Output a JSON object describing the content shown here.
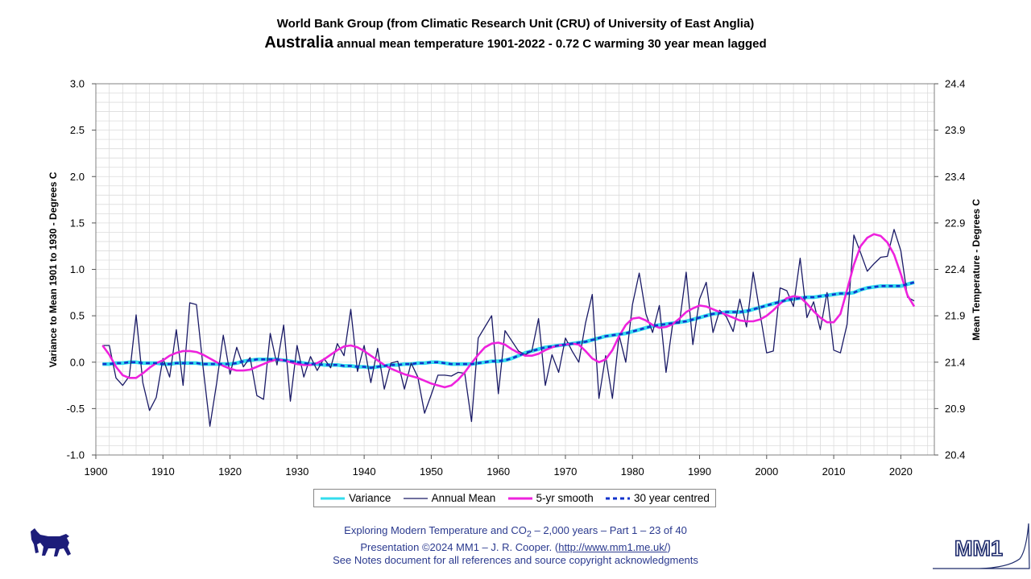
{
  "header": {
    "line1": "World Bank Group (from Climatic Research Unit (CRU) of University of East Anglia)",
    "country": "Australia",
    "line2_rest": " annual mean temperature 1901-2022 - 0.72 C warming 30 year mean lagged"
  },
  "footer": {
    "line1_pre": "Exploring Modern Temperature and CO",
    "line1_sub": "2",
    "line1_post": " – 2,000 years – Part 1 – 23 of 40",
    "line2_pre": "Presentation ©2024 MM1 – J. R. Cooper. (",
    "line2_link": "http://www.mm1.me.uk/",
    "line2_post": ")",
    "line3": "See Notes document for all references and source copyright acknowledgments"
  },
  "logo": {
    "text": "MM1"
  },
  "chart_data": {
    "type": "line",
    "title": "Australia annual mean temperature 1901-2022 - 0.72 C warming 30 year mean lagged",
    "xlabel": "",
    "ylabel": "Variance to Mean 1901 to 1930 - Degrees C",
    "y2label": "Mean Temperature - Degrees C",
    "xlim": [
      1900,
      2025
    ],
    "ylim": [
      -1.0,
      3.0
    ],
    "y2lim": [
      20.4,
      24.4
    ],
    "x_ticks": [
      1900,
      1910,
      1920,
      1930,
      1940,
      1950,
      1960,
      1970,
      1980,
      1990,
      2000,
      2010,
      2020
    ],
    "y_ticks": [
      "-1.0",
      "-0.5",
      "0.0",
      "0.5",
      "1.0",
      "1.5",
      "2.0",
      "2.5",
      "3.0"
    ],
    "y2_ticks": [
      "20.4",
      "20.9",
      "21.4",
      "21.9",
      "22.4",
      "22.9",
      "23.4",
      "23.9",
      "24.4"
    ],
    "grid": true,
    "legend_position": "bottom",
    "legend": [
      "Variance",
      "Annual Mean",
      "5-yr smooth",
      "30 year centred"
    ],
    "colors": {
      "variance": "#33ddee",
      "annual": "#1a1a66",
      "smooth": "#ee22dd",
      "centred": "#1133cc",
      "grid": "#dcdcdc"
    },
    "start_year": 1901,
    "series": [
      {
        "name": "Annual Mean",
        "values": [
          0.18,
          0.18,
          -0.17,
          -0.25,
          -0.15,
          0.51,
          -0.22,
          -0.52,
          -0.38,
          0.04,
          -0.16,
          0.35,
          -0.25,
          0.64,
          0.62,
          -0.06,
          -0.69,
          -0.23,
          0.29,
          -0.13,
          0.16,
          -0.05,
          0.05,
          -0.36,
          -0.4,
          0.31,
          -0.03,
          0.4,
          -0.42,
          0.18,
          -0.16,
          0.06,
          -0.09,
          0.04,
          -0.06,
          0.2,
          0.07,
          0.57,
          -0.1,
          0.18,
          -0.22,
          0.15,
          -0.29,
          -0.01,
          0.01,
          -0.29,
          -0.01,
          -0.16,
          -0.55,
          -0.35,
          -0.14,
          -0.14,
          -0.15,
          -0.11,
          -0.12,
          -0.64,
          0.26,
          0.38,
          0.5,
          -0.34,
          0.34,
          0.23,
          0.12,
          0.08,
          0.12,
          0.47,
          -0.25,
          0.08,
          -0.11,
          0.26,
          0.12,
          0.0,
          0.42,
          0.73,
          -0.39,
          0.07,
          -0.39,
          0.29,
          0.0,
          0.62,
          0.96,
          0.52,
          0.32,
          0.61,
          -0.11,
          0.42,
          0.42,
          0.97,
          0.19,
          0.68,
          0.86,
          0.32,
          0.56,
          0.49,
          0.33,
          0.68,
          0.38,
          0.97,
          0.53,
          0.1,
          0.12,
          0.8,
          0.77,
          0.6,
          1.12,
          0.48,
          0.65,
          0.35,
          0.75,
          0.13,
          0.1,
          0.41,
          1.37,
          1.18,
          0.98,
          1.06,
          1.13,
          1.14,
          1.43,
          1.2,
          0.7,
          0.66
        ]
      },
      {
        "name": "5-yr smooth",
        "values": [
          0.18,
          0.08,
          -0.05,
          -0.14,
          -0.17,
          -0.17,
          -0.12,
          -0.06,
          -0.01,
          0.02,
          0.07,
          0.1,
          0.12,
          0.12,
          0.11,
          0.08,
          0.04,
          0.0,
          -0.04,
          -0.07,
          -0.09,
          -0.09,
          -0.08,
          -0.05,
          -0.02,
          0.01,
          0.03,
          0.02,
          0.0,
          -0.02,
          -0.03,
          -0.03,
          -0.01,
          0.03,
          0.08,
          0.13,
          0.17,
          0.18,
          0.16,
          0.12,
          0.07,
          0.02,
          -0.03,
          -0.07,
          -0.1,
          -0.13,
          -0.15,
          -0.17,
          -0.2,
          -0.23,
          -0.25,
          -0.27,
          -0.25,
          -0.19,
          -0.11,
          -0.01,
          0.08,
          0.16,
          0.2,
          0.21,
          0.19,
          0.14,
          0.1,
          0.07,
          0.07,
          0.09,
          0.13,
          0.16,
          0.18,
          0.19,
          0.2,
          0.19,
          0.12,
          0.04,
          0.0,
          0.03,
          0.13,
          0.28,
          0.4,
          0.47,
          0.48,
          0.45,
          0.4,
          0.37,
          0.38,
          0.41,
          0.47,
          0.54,
          0.58,
          0.61,
          0.6,
          0.57,
          0.54,
          0.51,
          0.48,
          0.45,
          0.44,
          0.44,
          0.46,
          0.5,
          0.56,
          0.63,
          0.69,
          0.71,
          0.7,
          0.63,
          0.55,
          0.48,
          0.43,
          0.43,
          0.52,
          0.78,
          1.05,
          1.25,
          1.34,
          1.38,
          1.36,
          1.29,
          1.16,
          0.95,
          0.72,
          0.6
        ]
      },
      {
        "name": "Variance",
        "values": [
          -0.02,
          -0.02,
          -0.01,
          -0.01,
          0.0,
          0.0,
          -0.01,
          -0.01,
          -0.01,
          -0.02,
          -0.02,
          -0.01,
          -0.01,
          -0.01,
          -0.01,
          -0.02,
          -0.02,
          -0.02,
          -0.02,
          -0.02,
          -0.01,
          0.01,
          0.02,
          0.03,
          0.03,
          0.03,
          0.03,
          0.02,
          0.01,
          0.0,
          -0.01,
          -0.02,
          -0.02,
          -0.03,
          -0.03,
          -0.03,
          -0.04,
          -0.04,
          -0.05,
          -0.05,
          -0.06,
          -0.05,
          -0.04,
          -0.03,
          -0.03,
          -0.02,
          -0.02,
          -0.01,
          -0.01,
          0.0,
          0.0,
          -0.01,
          -0.02,
          -0.02,
          -0.02,
          -0.02,
          -0.01,
          0.0,
          0.01,
          0.01,
          0.02,
          0.04,
          0.07,
          0.1,
          0.12,
          0.14,
          0.16,
          0.17,
          0.18,
          0.19,
          0.2,
          0.21,
          0.22,
          0.24,
          0.26,
          0.28,
          0.29,
          0.3,
          0.31,
          0.33,
          0.35,
          0.37,
          0.39,
          0.4,
          0.41,
          0.42,
          0.43,
          0.44,
          0.46,
          0.48,
          0.5,
          0.52,
          0.53,
          0.54,
          0.54,
          0.54,
          0.55,
          0.57,
          0.59,
          0.61,
          0.63,
          0.65,
          0.67,
          0.68,
          0.69,
          0.7,
          0.7,
          0.71,
          0.72,
          0.73,
          0.74,
          0.74,
          0.75,
          0.78,
          0.8,
          0.81,
          0.82,
          0.82,
          0.82,
          0.82,
          0.84,
          0.86
        ]
      },
      {
        "name": "30 year centred",
        "values": [
          -0.02,
          -0.02,
          -0.01,
          -0.01,
          0.0,
          0.0,
          -0.01,
          -0.01,
          -0.01,
          -0.02,
          -0.02,
          -0.01,
          -0.01,
          -0.01,
          -0.01,
          -0.02,
          -0.02,
          -0.02,
          -0.02,
          -0.02,
          -0.01,
          0.01,
          0.02,
          0.03,
          0.03,
          0.03,
          0.03,
          0.02,
          0.01,
          0.0,
          -0.01,
          -0.02,
          -0.02,
          -0.03,
          -0.03,
          -0.03,
          -0.04,
          -0.04,
          -0.05,
          -0.05,
          -0.06,
          -0.05,
          -0.04,
          -0.03,
          -0.03,
          -0.02,
          -0.02,
          -0.01,
          -0.01,
          0.0,
          0.0,
          -0.01,
          -0.02,
          -0.02,
          -0.02,
          -0.02,
          -0.01,
          0.0,
          0.01,
          0.01,
          0.02,
          0.04,
          0.07,
          0.1,
          0.12,
          0.14,
          0.16,
          0.17,
          0.18,
          0.19,
          0.2,
          0.21,
          0.22,
          0.24,
          0.26,
          0.28,
          0.29,
          0.3,
          0.31,
          0.33,
          0.35,
          0.37,
          0.39,
          0.4,
          0.41,
          0.42,
          0.43,
          0.44,
          0.46,
          0.48,
          0.5,
          0.52,
          0.53,
          0.54,
          0.54,
          0.54,
          0.55,
          0.57,
          0.59,
          0.61,
          0.63,
          0.65,
          0.67,
          0.68,
          0.69,
          0.7,
          0.7,
          0.71,
          0.72,
          0.73,
          0.74,
          0.74,
          0.75,
          0.78,
          0.8,
          0.81,
          0.82,
          0.82,
          0.82,
          0.82,
          0.84,
          0.86
        ]
      }
    ]
  }
}
